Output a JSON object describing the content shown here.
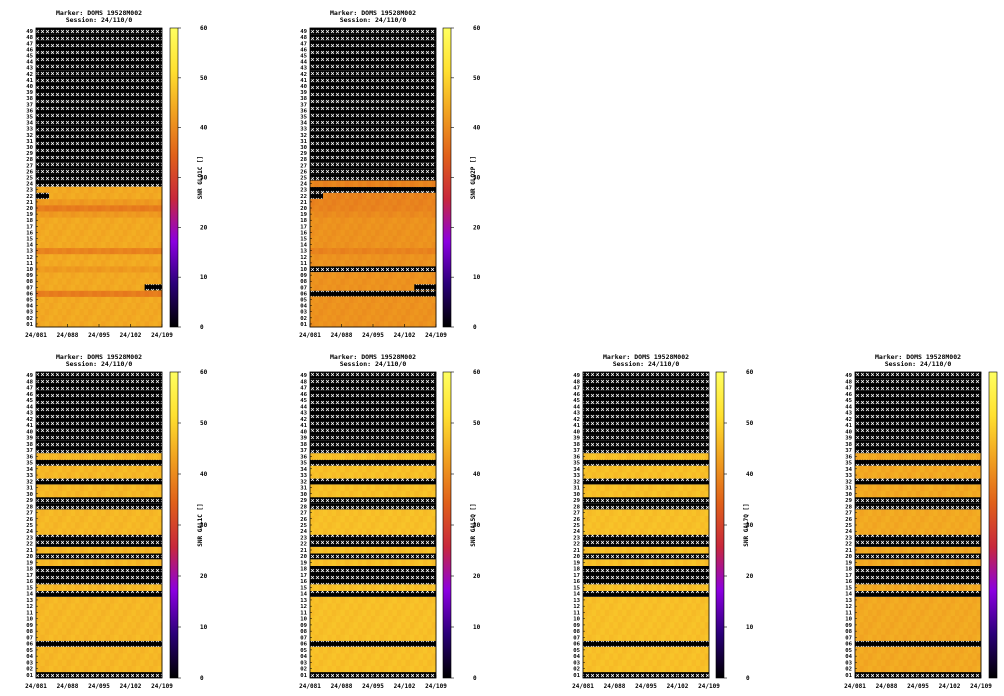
{
  "page": {
    "background": "#ffffff"
  },
  "colors": {
    "missing": "#000000",
    "missing_mark": "#ffffff",
    "colormap_stops": [
      "#000000",
      "#2a0078",
      "#8b00e0",
      "#c8283c",
      "#e0601a",
      "#f0a020",
      "#ffe030",
      "#ffff60"
    ]
  },
  "chart_data": [
    {
      "type": "heatmap",
      "title_line1": "Marker: DOMS 19528M002",
      "title_line2": "Session: 24/110/0",
      "colorbar_label": "SNR GLO1C []",
      "colorbar_ticks": [
        "0",
        "10",
        "20",
        "30",
        "40",
        "50",
        "60"
      ],
      "zlim": [
        0,
        60
      ],
      "x_ticks": [
        "24/081",
        "24/088",
        "24/095",
        "24/102",
        "24/109"
      ],
      "y_labels": [
        "01",
        "02",
        "03",
        "04",
        "05",
        "06",
        "07",
        "08",
        "09",
        "10",
        "11",
        "12",
        "13",
        "14",
        "15",
        "16",
        "17",
        "18",
        "19",
        "20",
        "21",
        "22",
        "23",
        "24",
        "25",
        "26",
        "27",
        "28",
        "29",
        "30",
        "31",
        "32",
        "33",
        "34",
        "35",
        "36",
        "37",
        "38",
        "39",
        "40",
        "41",
        "42",
        "43",
        "44",
        "45",
        "46",
        "47",
        "48",
        "49"
      ],
      "n_cols": 29,
      "row_values": [
        44,
        44,
        44,
        44,
        44,
        38,
        44,
        44,
        44,
        42,
        44,
        44,
        39,
        44,
        44,
        44,
        44,
        44,
        42,
        38,
        42,
        44,
        44,
        null,
        null,
        null,
        null,
        null,
        null,
        null,
        null,
        null,
        null,
        null,
        null,
        null,
        null,
        null,
        null,
        null,
        null,
        null,
        null,
        null,
        null,
        null,
        null,
        null,
        null
      ],
      "missing_rows": [
        "24",
        "25",
        "26",
        "27",
        "28",
        "29",
        "30",
        "31",
        "32",
        "33",
        "34",
        "35",
        "36",
        "37",
        "38",
        "39",
        "40",
        "41",
        "42",
        "43",
        "44",
        "45",
        "46",
        "47",
        "48",
        "49"
      ],
      "partial_missing": [
        {
          "row": "07",
          "cols": [
            25,
            28
          ]
        },
        {
          "row": "22",
          "cols": [
            0,
            2
          ]
        }
      ]
    },
    {
      "type": "heatmap",
      "title_line1": "Marker: DOMS 19528M002",
      "title_line2": "Session: 24/110/0",
      "colorbar_label": "SNR GLO2P []",
      "colorbar_ticks": [
        "0",
        "10",
        "20",
        "30",
        "40",
        "50",
        "60"
      ],
      "zlim": [
        0,
        60
      ],
      "x_ticks": [
        "24/081",
        "24/088",
        "24/095",
        "24/102",
        "24/109"
      ],
      "y_labels": [
        "01",
        "02",
        "03",
        "04",
        "05",
        "06",
        "07",
        "08",
        "09",
        "10",
        "11",
        "12",
        "13",
        "14",
        "15",
        "16",
        "17",
        "18",
        "19",
        "20",
        "21",
        "22",
        "23",
        "24",
        "25",
        "26",
        "27",
        "28",
        "29",
        "30",
        "31",
        "32",
        "33",
        "34",
        "35",
        "36",
        "37",
        "38",
        "39",
        "40",
        "41",
        "42",
        "43",
        "44",
        "45",
        "46",
        "47",
        "48",
        "49"
      ],
      "n_cols": 29,
      "row_values": [
        41,
        41,
        41,
        41,
        41,
        null,
        41,
        41,
        41,
        null,
        41,
        41,
        39,
        41,
        41,
        41,
        41,
        41,
        40,
        39,
        39,
        39,
        null,
        39,
        null,
        null,
        null,
        null,
        null,
        null,
        null,
        null,
        null,
        null,
        null,
        null,
        null,
        null,
        null,
        null,
        null,
        null,
        null,
        null,
        null,
        null,
        null,
        null,
        null
      ],
      "missing_rows": [
        "06",
        "10",
        "23",
        "25",
        "26",
        "27",
        "28",
        "29",
        "30",
        "31",
        "32",
        "33",
        "34",
        "35",
        "36",
        "37",
        "38",
        "39",
        "40",
        "41",
        "42",
        "43",
        "44",
        "45",
        "46",
        "47",
        "48",
        "49"
      ],
      "partial_missing": [
        {
          "row": "07",
          "cols": [
            24,
            28
          ]
        },
        {
          "row": "22",
          "cols": [
            0,
            2
          ]
        }
      ]
    },
    {
      "type": "heatmap",
      "title_line1": "Marker: DOMS 19528M002",
      "title_line2": "Session: 24/110/0",
      "colorbar_label": "SNR GAL1C []",
      "colorbar_ticks": [
        "0",
        "10",
        "20",
        "30",
        "40",
        "50",
        "60"
      ],
      "zlim": [
        0,
        60
      ],
      "x_ticks": [
        "24/081",
        "24/088",
        "24/095",
        "24/102",
        "24/109"
      ],
      "y_labels": [
        "01",
        "02",
        "03",
        "04",
        "05",
        "06",
        "07",
        "08",
        "09",
        "10",
        "11",
        "12",
        "13",
        "14",
        "15",
        "16",
        "17",
        "18",
        "19",
        "20",
        "21",
        "22",
        "23",
        "24",
        "25",
        "26",
        "27",
        "28",
        "29",
        "30",
        "31",
        "32",
        "33",
        "34",
        "35",
        "36",
        "37",
        "38",
        "39",
        "40",
        "41",
        "42",
        "43",
        "44",
        "45",
        "46",
        "47",
        "48",
        "49"
      ],
      "n_cols": 29,
      "row_values": [
        null,
        46,
        46,
        46,
        46,
        null,
        46,
        46,
        46,
        46,
        46,
        46,
        46,
        null,
        46,
        null,
        null,
        null,
        46,
        null,
        46,
        null,
        null,
        46,
        46,
        46,
        46,
        null,
        null,
        46,
        46,
        null,
        46,
        46,
        null,
        46,
        null,
        null,
        null,
        null,
        null,
        null,
        null,
        null,
        null,
        null,
        null,
        null,
        null
      ],
      "missing_rows": [
        "01",
        "06",
        "14",
        "16",
        "17",
        "18",
        "20",
        "22",
        "23",
        "28",
        "29",
        "32",
        "35",
        "37",
        "38",
        "39",
        "40",
        "41",
        "42",
        "43",
        "44",
        "45",
        "46",
        "47",
        "48",
        "49"
      ],
      "partial_missing": []
    },
    {
      "type": "heatmap",
      "title_line1": "Marker: DOMS 19528M002",
      "title_line2": "Session: 24/110/0",
      "colorbar_label": "SNR GAL5Q []",
      "colorbar_ticks": [
        "0",
        "10",
        "20",
        "30",
        "40",
        "50",
        "60"
      ],
      "zlim": [
        0,
        60
      ],
      "x_ticks": [
        "24/081",
        "24/088",
        "24/095",
        "24/102",
        "24/109"
      ],
      "y_labels": [
        "01",
        "02",
        "03",
        "04",
        "05",
        "06",
        "07",
        "08",
        "09",
        "10",
        "11",
        "12",
        "13",
        "14",
        "15",
        "16",
        "17",
        "18",
        "19",
        "20",
        "21",
        "22",
        "23",
        "24",
        "25",
        "26",
        "27",
        "28",
        "29",
        "30",
        "31",
        "32",
        "33",
        "34",
        "35",
        "36",
        "37",
        "38",
        "39",
        "40",
        "41",
        "42",
        "43",
        "44",
        "45",
        "46",
        "47",
        "48",
        "49"
      ],
      "n_cols": 29,
      "row_values": [
        null,
        47,
        47,
        47,
        47,
        null,
        47,
        47,
        47,
        47,
        47,
        47,
        47,
        null,
        47,
        null,
        null,
        null,
        47,
        null,
        47,
        null,
        null,
        47,
        47,
        47,
        47,
        null,
        null,
        47,
        47,
        null,
        47,
        47,
        null,
        47,
        null,
        null,
        null,
        null,
        null,
        null,
        null,
        null,
        null,
        null,
        null,
        null,
        null
      ],
      "missing_rows": [
        "01",
        "06",
        "14",
        "16",
        "17",
        "18",
        "20",
        "22",
        "23",
        "28",
        "29",
        "32",
        "35",
        "37",
        "38",
        "39",
        "40",
        "41",
        "42",
        "43",
        "44",
        "45",
        "46",
        "47",
        "48",
        "49"
      ],
      "partial_missing": []
    },
    {
      "type": "heatmap",
      "title_line1": "Marker: DOMS 19528M002",
      "title_line2": "Session: 24/110/0",
      "colorbar_label": "SNR GAL7Q []",
      "colorbar_ticks": [
        "0",
        "10",
        "20",
        "30",
        "40",
        "50",
        "60"
      ],
      "zlim": [
        0,
        60
      ],
      "x_ticks": [
        "24/081",
        "24/088",
        "24/095",
        "24/102",
        "24/109"
      ],
      "y_labels": [
        "01",
        "02",
        "03",
        "04",
        "05",
        "06",
        "07",
        "08",
        "09",
        "10",
        "11",
        "12",
        "13",
        "14",
        "15",
        "16",
        "17",
        "18",
        "19",
        "20",
        "21",
        "22",
        "23",
        "24",
        "25",
        "26",
        "27",
        "28",
        "29",
        "30",
        "31",
        "32",
        "33",
        "34",
        "35",
        "36",
        "37",
        "38",
        "39",
        "40",
        "41",
        "42",
        "43",
        "44",
        "45",
        "46",
        "47",
        "48",
        "49"
      ],
      "n_cols": 29,
      "row_values": [
        null,
        47,
        47,
        47,
        47,
        null,
        47,
        47,
        47,
        47,
        47,
        47,
        47,
        null,
        47,
        null,
        null,
        null,
        47,
        null,
        47,
        null,
        null,
        47,
        47,
        47,
        47,
        null,
        null,
        47,
        47,
        null,
        47,
        47,
        null,
        47,
        null,
        null,
        null,
        null,
        null,
        null,
        null,
        null,
        null,
        null,
        null,
        null,
        null
      ],
      "missing_rows": [
        "01",
        "06",
        "14",
        "16",
        "17",
        "18",
        "20",
        "22",
        "23",
        "28",
        "29",
        "32",
        "35",
        "37",
        "38",
        "39",
        "40",
        "41",
        "42",
        "43",
        "44",
        "45",
        "46",
        "47",
        "48",
        "49"
      ],
      "partial_missing": []
    },
    {
      "type": "heatmap",
      "title_line1": "Marker: DOMS 19528M002",
      "title_line2": "Session: 24/110/0",
      "colorbar_label": "",
      "colorbar_ticks": [],
      "zlim": [
        0,
        60
      ],
      "x_ticks": [
        "24/081",
        "24/088",
        "24/095",
        "24/102",
        "24/109"
      ],
      "y_labels": [
        "01",
        "02",
        "03",
        "04",
        "05",
        "06",
        "07",
        "08",
        "09",
        "10",
        "11",
        "12",
        "13",
        "14",
        "15",
        "16",
        "17",
        "18",
        "19",
        "20",
        "21",
        "22",
        "23",
        "24",
        "25",
        "26",
        "27",
        "28",
        "29",
        "30",
        "31",
        "32",
        "33",
        "34",
        "35",
        "36",
        "37",
        "38",
        "39",
        "40",
        "41",
        "42",
        "43",
        "44",
        "45",
        "46",
        "47",
        "48",
        "49"
      ],
      "n_cols": 29,
      "row_values": [
        null,
        44,
        44,
        44,
        44,
        null,
        44,
        44,
        44,
        44,
        44,
        44,
        44,
        null,
        44,
        null,
        null,
        null,
        44,
        null,
        44,
        null,
        null,
        44,
        44,
        44,
        44,
        null,
        null,
        44,
        44,
        null,
        44,
        44,
        null,
        44,
        null,
        null,
        null,
        null,
        null,
        null,
        null,
        null,
        null,
        null,
        null,
        null,
        null
      ],
      "missing_rows": [
        "01",
        "06",
        "14",
        "16",
        "17",
        "18",
        "20",
        "22",
        "23",
        "28",
        "29",
        "32",
        "35",
        "37",
        "38",
        "39",
        "40",
        "41",
        "42",
        "43",
        "44",
        "45",
        "46",
        "47",
        "48",
        "49"
      ],
      "partial_missing": []
    }
  ]
}
